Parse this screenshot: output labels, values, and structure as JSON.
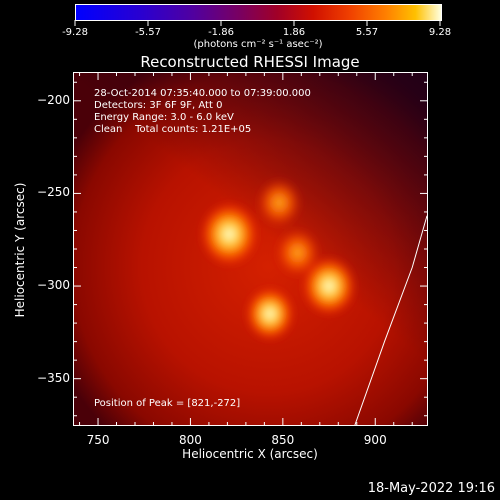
{
  "colorbar": {
    "ticks": [
      "-9.28",
      "-5.57",
      "-1.86",
      "1.86",
      "5.57",
      "9.28"
    ],
    "unit_label": "(photons cm⁻² s⁻¹ asec⁻²)"
  },
  "chart_data": {
    "type": "heatmap",
    "title": "Reconstructed RHESSI Image",
    "xlabel": "Heliocentric X (arcsec)",
    "ylabel": "Heliocentric Y (arcsec)",
    "xlim": [
      737,
      928
    ],
    "ylim": [
      -375,
      -185
    ],
    "x_ticks": [
      750,
      800,
      850,
      900
    ],
    "y_ticks": [
      -200,
      -250,
      -300,
      -350
    ],
    "x_tick_labels": [
      "750",
      "800",
      "850",
      "900"
    ],
    "y_tick_labels": [
      "−200",
      "−250",
      "−300",
      "−350"
    ],
    "color_range": [
      -9.28,
      9.28
    ],
    "sources": [
      {
        "x": 821,
        "y": -272,
        "peak": 9.28
      },
      {
        "x": 875,
        "y": -300,
        "peak": 8.0
      },
      {
        "x": 843,
        "y": -315,
        "peak": 6.5
      },
      {
        "x": 848,
        "y": -255,
        "peak": 5.0
      },
      {
        "x": 858,
        "y": -282,
        "peak": 5.0
      }
    ],
    "limb": [
      [
        889,
        -375
      ],
      [
        905,
        -330
      ],
      [
        920,
        -290
      ],
      [
        928,
        -262
      ]
    ],
    "annotations": {
      "time_range": "28-Oct-2014 07:35:40.000 to 07:39:00.000",
      "detectors": "Detectors: 3F 6F 9F, Att 0",
      "energy": "Energy Range: 3.0 - 6.0 keV",
      "clean": "Clean    Total counts: 1.21E+05",
      "peak": "Position of Peak = [821,-272]"
    }
  },
  "footer": {
    "date": "18-May-2022 19:16"
  }
}
